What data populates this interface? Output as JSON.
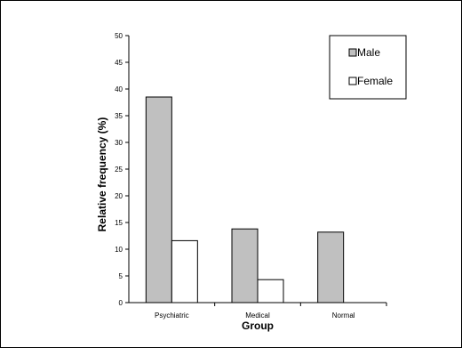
{
  "chart_data": {
    "type": "bar",
    "categories": [
      "Psychiatric",
      "Medical",
      "Normal"
    ],
    "series": [
      {
        "name": "Male",
        "values": [
          38.5,
          13.8,
          13.2
        ],
        "color": "#c0c0c0"
      },
      {
        "name": "Female",
        "values": [
          11.6,
          4.3,
          0
        ],
        "color": "#ffffff"
      }
    ],
    "title": "",
    "xlabel": "Group",
    "ylabel": "Relative frequency (%)",
    "ylim": [
      0,
      50
    ],
    "yticks": [
      "0",
      "5",
      "10",
      "15",
      "20",
      "25",
      "30",
      "35",
      "40",
      "45",
      "50"
    ],
    "grid": false,
    "legend_position": "top-right"
  }
}
